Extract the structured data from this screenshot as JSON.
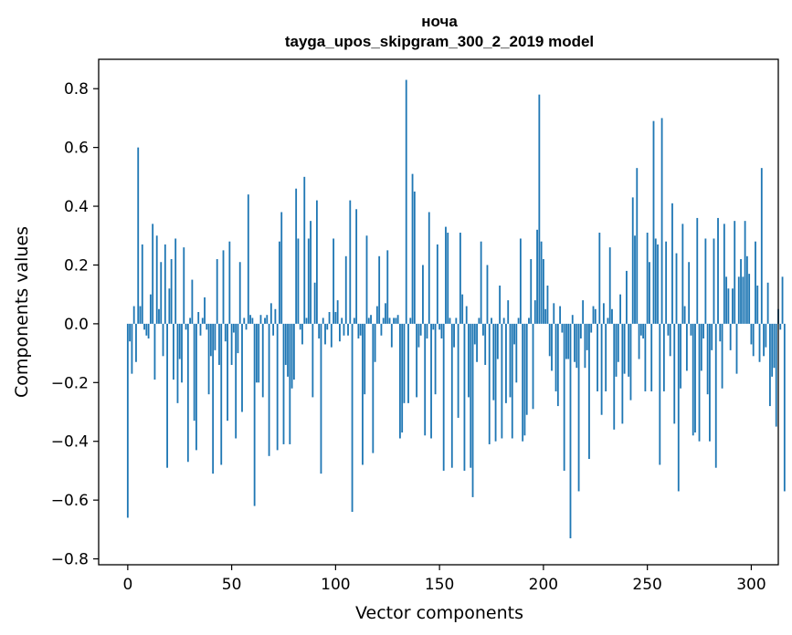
{
  "chart_data": {
    "type": "bar",
    "title": "ноча",
    "subtitle": "tayga_upos_skipgram_300_2_2019 model",
    "xlabel": "Vector components",
    "ylabel": "Components values",
    "xlim": [
      -14,
      313
    ],
    "ylim": [
      -0.82,
      0.9
    ],
    "xticks": [
      0,
      50,
      100,
      150,
      200,
      250,
      300
    ],
    "yticks": [
      -0.8,
      -0.6,
      -0.4,
      -0.2,
      0.0,
      0.2,
      0.4,
      0.6,
      0.8
    ],
    "ytick_labels": [
      "−0.8",
      "−0.6",
      "−0.4",
      "−0.2",
      "0.0",
      "0.2",
      "0.4",
      "0.6",
      "0.8"
    ],
    "bar_color": "#1f77b4",
    "values": [
      -0.66,
      -0.06,
      -0.17,
      0.06,
      -0.13,
      0.6,
      0.06,
      0.27,
      -0.02,
      -0.04,
      -0.05,
      0.1,
      0.34,
      -0.19,
      0.3,
      0.05,
      0.21,
      -0.11,
      0.27,
      -0.49,
      0.12,
      0.22,
      -0.19,
      0.29,
      -0.27,
      -0.12,
      -0.2,
      0.26,
      -0.02,
      -0.47,
      0.02,
      0.15,
      -0.33,
      -0.43,
      0.04,
      -0.04,
      0.02,
      0.09,
      -0.02,
      -0.24,
      -0.11,
      -0.51,
      -0.09,
      0.22,
      -0.14,
      -0.48,
      0.25,
      -0.06,
      -0.33,
      0.28,
      -0.14,
      -0.03,
      -0.39,
      -0.1,
      0.21,
      -0.3,
      0.02,
      -0.02,
      0.44,
      0.03,
      0.02,
      -0.62,
      -0.2,
      -0.2,
      0.03,
      -0.25,
      0.02,
      0.03,
      -0.45,
      0.07,
      -0.04,
      0.05,
      -0.43,
      0.28,
      0.38,
      -0.41,
      -0.14,
      -0.18,
      -0.41,
      -0.22,
      -0.19,
      0.46,
      0.29,
      -0.02,
      -0.07,
      0.5,
      0.02,
      0.29,
      0.35,
      -0.25,
      0.14,
      0.42,
      -0.05,
      -0.51,
      0.02,
      -0.07,
      -0.02,
      0.04,
      -0.08,
      0.29,
      0.04,
      0.08,
      -0.06,
      0.02,
      -0.04,
      0.23,
      -0.04,
      0.42,
      -0.64,
      0.02,
      0.39,
      -0.05,
      -0.04,
      -0.48,
      -0.24,
      0.3,
      0.02,
      0.03,
      -0.44,
      -0.13,
      0.06,
      0.23,
      -0.04,
      0.02,
      0.07,
      0.25,
      0.02,
      -0.08,
      0.02,
      0.02,
      0.03,
      -0.39,
      -0.37,
      -0.27,
      0.83,
      -0.27,
      0.02,
      0.51,
      0.45,
      -0.25,
      -0.08,
      -0.04,
      0.2,
      -0.38,
      -0.05,
      0.38,
      -0.39,
      -0.02,
      -0.24,
      0.27,
      -0.02,
      -0.05,
      -0.5,
      0.33,
      0.31,
      0.02,
      -0.49,
      -0.08,
      0.02,
      -0.32,
      0.31,
      0.1,
      -0.5,
      0.06,
      -0.25,
      -0.49,
      -0.59,
      -0.07,
      -0.13,
      0.02,
      0.28,
      -0.04,
      -0.14,
      0.2,
      -0.41,
      0.02,
      -0.26,
      -0.4,
      -0.12,
      0.13,
      -0.39,
      0.02,
      -0.27,
      0.08,
      -0.25,
      -0.39,
      -0.07,
      -0.2,
      0.02,
      0.29,
      -0.4,
      -0.38,
      -0.31,
      0.02,
      0.22,
      -0.29,
      0.08,
      0.32,
      0.78,
      0.28,
      0.22,
      0.05,
      0.13,
      -0.11,
      -0.16,
      0.07,
      -0.23,
      -0.28,
      0.06,
      -0.03,
      -0.5,
      -0.12,
      -0.12,
      -0.73,
      0.03,
      -0.13,
      -0.15,
      -0.57,
      -0.05,
      0.08,
      -0.15,
      -0.09,
      -0.46,
      -0.03,
      0.06,
      0.05,
      -0.23,
      0.31,
      -0.31,
      0.07,
      -0.23,
      0.02,
      0.26,
      0.05,
      -0.36,
      -0.18,
      -0.13,
      0.1,
      -0.34,
      -0.17,
      0.18,
      -0.18,
      -0.26,
      0.43,
      0.3,
      0.53,
      -0.12,
      -0.04,
      -0.05,
      -0.23,
      0.31,
      0.21,
      -0.23,
      0.69,
      0.29,
      0.27,
      -0.48,
      0.7,
      -0.23,
      0.28,
      -0.04,
      -0.11,
      0.41,
      -0.34,
      0.24,
      -0.57,
      -0.22,
      0.34,
      0.06,
      -0.16,
      0.21,
      -0.04,
      -0.38,
      -0.37,
      0.36,
      -0.4,
      -0.16,
      -0.05,
      0.29,
      -0.24,
      -0.4,
      -0.09,
      0.29,
      -0.49,
      0.36,
      -0.06,
      -0.22,
      0.34,
      0.16,
      0.12,
      -0.09,
      0.12,
      0.35,
      -0.17,
      0.16,
      0.22,
      0.16,
      0.35,
      0.23,
      0.17,
      -0.07,
      -0.11,
      0.28,
      0.13,
      -0.13,
      0.53,
      -0.11,
      -0.08,
      0.14,
      -0.28,
      -0.18,
      -0.15,
      -0.35,
      0.05,
      -0.02,
      0.16,
      -0.57
    ]
  }
}
